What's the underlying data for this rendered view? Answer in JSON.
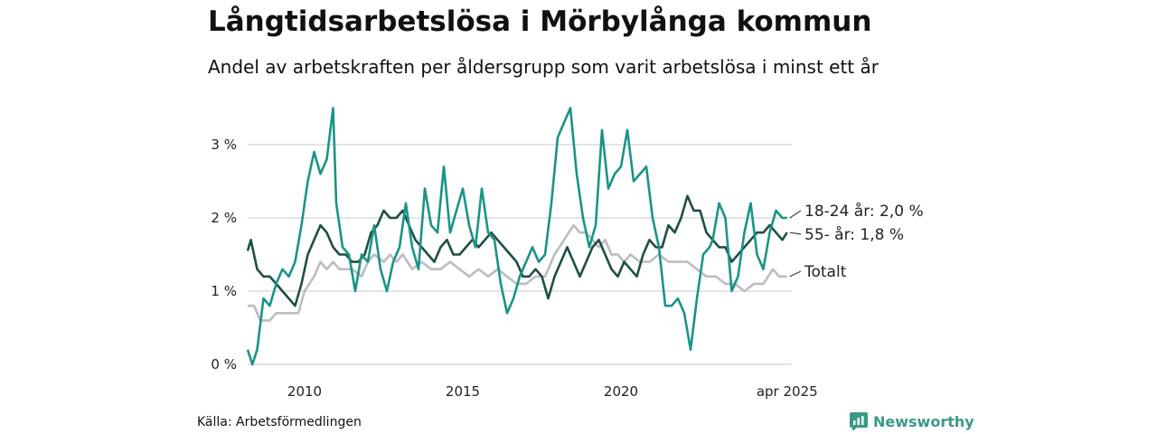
{
  "title": "Långtidsarbetslösa i Mörbylånga kommun",
  "subtitle": "Andel av arbetskraften per åldersgrupp som varit arbetslösa i minst ett år",
  "source": "Källa: Arbetsförmedlingen",
  "brand": "Newsworthy",
  "chart_data": {
    "type": "line",
    "ylim": [
      0,
      3.5
    ],
    "yticks": [
      {
        "v": 0,
        "label": "0 %"
      },
      {
        "v": 1,
        "label": "1 %"
      },
      {
        "v": 2,
        "label": "2 %"
      },
      {
        "v": 3,
        "label": "3 %"
      }
    ],
    "xlim": [
      2008.2,
      2025.4
    ],
    "xticks": [
      {
        "v": 2010,
        "label": "2010"
      },
      {
        "v": 2015,
        "label": "2015"
      },
      {
        "v": 2020,
        "label": "2020"
      },
      {
        "v": 2025.25,
        "label": "apr 2025"
      }
    ],
    "grid": true,
    "series": [
      {
        "name": "Totalt",
        "label": "Totalt",
        "color": "#bdbcc4",
        "points": [
          [
            2008.2,
            0.8
          ],
          [
            2008.4,
            0.8
          ],
          [
            2008.6,
            0.6
          ],
          [
            2008.9,
            0.6
          ],
          [
            2009.1,
            0.7
          ],
          [
            2009.5,
            0.7
          ],
          [
            2009.8,
            0.7
          ],
          [
            2010.0,
            1.0
          ],
          [
            2010.3,
            1.2
          ],
          [
            2010.5,
            1.4
          ],
          [
            2010.7,
            1.3
          ],
          [
            2010.9,
            1.4
          ],
          [
            2011.1,
            1.3
          ],
          [
            2011.5,
            1.3
          ],
          [
            2011.8,
            1.2
          ],
          [
            2012.0,
            1.4
          ],
          [
            2012.2,
            1.5
          ],
          [
            2012.5,
            1.4
          ],
          [
            2012.7,
            1.5
          ],
          [
            2012.9,
            1.4
          ],
          [
            2013.1,
            1.5
          ],
          [
            2013.4,
            1.3
          ],
          [
            2013.7,
            1.4
          ],
          [
            2014.0,
            1.3
          ],
          [
            2014.3,
            1.3
          ],
          [
            2014.6,
            1.4
          ],
          [
            2014.9,
            1.3
          ],
          [
            2015.2,
            1.2
          ],
          [
            2015.5,
            1.3
          ],
          [
            2015.8,
            1.2
          ],
          [
            2016.1,
            1.3
          ],
          [
            2016.4,
            1.2
          ],
          [
            2016.7,
            1.1
          ],
          [
            2017.0,
            1.1
          ],
          [
            2017.3,
            1.2
          ],
          [
            2017.6,
            1.2
          ],
          [
            2017.9,
            1.5
          ],
          [
            2018.2,
            1.7
          ],
          [
            2018.5,
            1.9
          ],
          [
            2018.7,
            1.8
          ],
          [
            2018.9,
            1.8
          ],
          [
            2019.1,
            1.7
          ],
          [
            2019.3,
            1.6
          ],
          [
            2019.5,
            1.7
          ],
          [
            2019.7,
            1.5
          ],
          [
            2019.9,
            1.5
          ],
          [
            2020.1,
            1.4
          ],
          [
            2020.3,
            1.5
          ],
          [
            2020.6,
            1.4
          ],
          [
            2020.9,
            1.4
          ],
          [
            2021.2,
            1.5
          ],
          [
            2021.5,
            1.4
          ],
          [
            2021.8,
            1.4
          ],
          [
            2022.1,
            1.4
          ],
          [
            2022.4,
            1.3
          ],
          [
            2022.7,
            1.2
          ],
          [
            2023.0,
            1.2
          ],
          [
            2023.3,
            1.1
          ],
          [
            2023.6,
            1.1
          ],
          [
            2023.9,
            1.0
          ],
          [
            2024.2,
            1.1
          ],
          [
            2024.5,
            1.1
          ],
          [
            2024.8,
            1.3
          ],
          [
            2025.0,
            1.2
          ],
          [
            2025.25,
            1.2
          ]
        ]
      },
      {
        "name": "55- år",
        "label": "55- år: 1,8 %",
        "color": "#1f4f43",
        "points": [
          [
            2008.2,
            1.55
          ],
          [
            2008.3,
            1.7
          ],
          [
            2008.5,
            1.3
          ],
          [
            2008.7,
            1.2
          ],
          [
            2008.9,
            1.2
          ],
          [
            2009.1,
            1.1
          ],
          [
            2009.3,
            1.0
          ],
          [
            2009.5,
            0.9
          ],
          [
            2009.7,
            0.8
          ],
          [
            2009.9,
            1.1
          ],
          [
            2010.1,
            1.5
          ],
          [
            2010.3,
            1.7
          ],
          [
            2010.5,
            1.9
          ],
          [
            2010.7,
            1.8
          ],
          [
            2010.9,
            1.6
          ],
          [
            2011.1,
            1.5
          ],
          [
            2011.3,
            1.5
          ],
          [
            2011.5,
            1.4
          ],
          [
            2011.7,
            1.4
          ],
          [
            2011.9,
            1.5
          ],
          [
            2012.1,
            1.8
          ],
          [
            2012.3,
            1.9
          ],
          [
            2012.5,
            2.1
          ],
          [
            2012.7,
            2.0
          ],
          [
            2012.9,
            2.0
          ],
          [
            2013.1,
            2.1
          ],
          [
            2013.3,
            1.9
          ],
          [
            2013.5,
            1.7
          ],
          [
            2013.7,
            1.6
          ],
          [
            2013.9,
            1.5
          ],
          [
            2014.1,
            1.4
          ],
          [
            2014.3,
            1.6
          ],
          [
            2014.5,
            1.7
          ],
          [
            2014.7,
            1.5
          ],
          [
            2014.9,
            1.5
          ],
          [
            2015.1,
            1.6
          ],
          [
            2015.3,
            1.7
          ],
          [
            2015.5,
            1.6
          ],
          [
            2015.7,
            1.7
          ],
          [
            2015.9,
            1.8
          ],
          [
            2016.1,
            1.7
          ],
          [
            2016.3,
            1.6
          ],
          [
            2016.5,
            1.5
          ],
          [
            2016.7,
            1.4
          ],
          [
            2016.9,
            1.2
          ],
          [
            2017.1,
            1.2
          ],
          [
            2017.3,
            1.3
          ],
          [
            2017.5,
            1.2
          ],
          [
            2017.7,
            0.9
          ],
          [
            2017.9,
            1.2
          ],
          [
            2018.1,
            1.4
          ],
          [
            2018.3,
            1.6
          ],
          [
            2018.5,
            1.4
          ],
          [
            2018.7,
            1.2
          ],
          [
            2018.9,
            1.4
          ],
          [
            2019.1,
            1.6
          ],
          [
            2019.3,
            1.7
          ],
          [
            2019.5,
            1.5
          ],
          [
            2019.7,
            1.3
          ],
          [
            2019.9,
            1.2
          ],
          [
            2020.1,
            1.4
          ],
          [
            2020.3,
            1.3
          ],
          [
            2020.5,
            1.2
          ],
          [
            2020.7,
            1.5
          ],
          [
            2020.9,
            1.7
          ],
          [
            2021.1,
            1.6
          ],
          [
            2021.3,
            1.6
          ],
          [
            2021.5,
            1.9
          ],
          [
            2021.7,
            1.8
          ],
          [
            2021.9,
            2.0
          ],
          [
            2022.1,
            2.3
          ],
          [
            2022.3,
            2.1
          ],
          [
            2022.5,
            2.1
          ],
          [
            2022.7,
            1.8
          ],
          [
            2022.9,
            1.7
          ],
          [
            2023.1,
            1.6
          ],
          [
            2023.3,
            1.6
          ],
          [
            2023.5,
            1.4
          ],
          [
            2023.7,
            1.5
          ],
          [
            2023.9,
            1.6
          ],
          [
            2024.1,
            1.7
          ],
          [
            2024.3,
            1.8
          ],
          [
            2024.5,
            1.8
          ],
          [
            2024.7,
            1.9
          ],
          [
            2024.9,
            1.8
          ],
          [
            2025.1,
            1.7
          ],
          [
            2025.25,
            1.8
          ]
        ]
      },
      {
        "name": "18-24 år",
        "label": "18-24 år: 2,0 %",
        "color": "#1a9486",
        "points": [
          [
            2008.2,
            0.2
          ],
          [
            2008.35,
            0.0
          ],
          [
            2008.5,
            0.2
          ],
          [
            2008.7,
            0.9
          ],
          [
            2008.9,
            0.8
          ],
          [
            2009.1,
            1.1
          ],
          [
            2009.3,
            1.3
          ],
          [
            2009.5,
            1.2
          ],
          [
            2009.7,
            1.4
          ],
          [
            2009.9,
            1.9
          ],
          [
            2010.1,
            2.5
          ],
          [
            2010.3,
            2.9
          ],
          [
            2010.5,
            2.6
          ],
          [
            2010.7,
            2.8
          ],
          [
            2010.9,
            3.5
          ],
          [
            2011.0,
            2.2
          ],
          [
            2011.2,
            1.6
          ],
          [
            2011.4,
            1.5
          ],
          [
            2011.6,
            1.0
          ],
          [
            2011.8,
            1.5
          ],
          [
            2012.0,
            1.4
          ],
          [
            2012.2,
            1.9
          ],
          [
            2012.4,
            1.3
          ],
          [
            2012.6,
            1.0
          ],
          [
            2012.8,
            1.4
          ],
          [
            2013.0,
            1.6
          ],
          [
            2013.2,
            2.2
          ],
          [
            2013.4,
            1.6
          ],
          [
            2013.6,
            1.3
          ],
          [
            2013.8,
            2.4
          ],
          [
            2014.0,
            1.9
          ],
          [
            2014.2,
            1.8
          ],
          [
            2014.4,
            2.7
          ],
          [
            2014.6,
            1.8
          ],
          [
            2014.8,
            2.1
          ],
          [
            2015.0,
            2.4
          ],
          [
            2015.2,
            1.9
          ],
          [
            2015.4,
            1.6
          ],
          [
            2015.6,
            2.4
          ],
          [
            2015.8,
            1.8
          ],
          [
            2016.0,
            1.7
          ],
          [
            2016.2,
            1.1
          ],
          [
            2016.4,
            0.7
          ],
          [
            2016.6,
            0.9
          ],
          [
            2016.8,
            1.2
          ],
          [
            2017.0,
            1.4
          ],
          [
            2017.2,
            1.6
          ],
          [
            2017.4,
            1.4
          ],
          [
            2017.6,
            1.5
          ],
          [
            2017.8,
            2.2
          ],
          [
            2018.0,
            3.1
          ],
          [
            2018.2,
            3.3
          ],
          [
            2018.4,
            3.5
          ],
          [
            2018.6,
            2.6
          ],
          [
            2018.8,
            2.0
          ],
          [
            2019.0,
            1.6
          ],
          [
            2019.2,
            1.9
          ],
          [
            2019.4,
            3.2
          ],
          [
            2019.6,
            2.4
          ],
          [
            2019.8,
            2.6
          ],
          [
            2020.0,
            2.7
          ],
          [
            2020.2,
            3.2
          ],
          [
            2020.4,
            2.5
          ],
          [
            2020.6,
            2.6
          ],
          [
            2020.8,
            2.7
          ],
          [
            2021.0,
            2.0
          ],
          [
            2021.2,
            1.6
          ],
          [
            2021.4,
            0.8
          ],
          [
            2021.6,
            0.8
          ],
          [
            2021.8,
            0.9
          ],
          [
            2022.0,
            0.7
          ],
          [
            2022.2,
            0.2
          ],
          [
            2022.4,
            0.9
          ],
          [
            2022.6,
            1.5
          ],
          [
            2022.8,
            1.6
          ],
          [
            2022.9,
            1.7
          ],
          [
            2023.1,
            2.2
          ],
          [
            2023.3,
            2.0
          ],
          [
            2023.5,
            1.0
          ],
          [
            2023.7,
            1.2
          ],
          [
            2023.9,
            1.8
          ],
          [
            2024.1,
            2.2
          ],
          [
            2024.3,
            1.5
          ],
          [
            2024.5,
            1.3
          ],
          [
            2024.7,
            1.8
          ],
          [
            2024.9,
            2.1
          ],
          [
            2025.1,
            2.0
          ],
          [
            2025.25,
            2.0
          ]
        ]
      }
    ]
  }
}
